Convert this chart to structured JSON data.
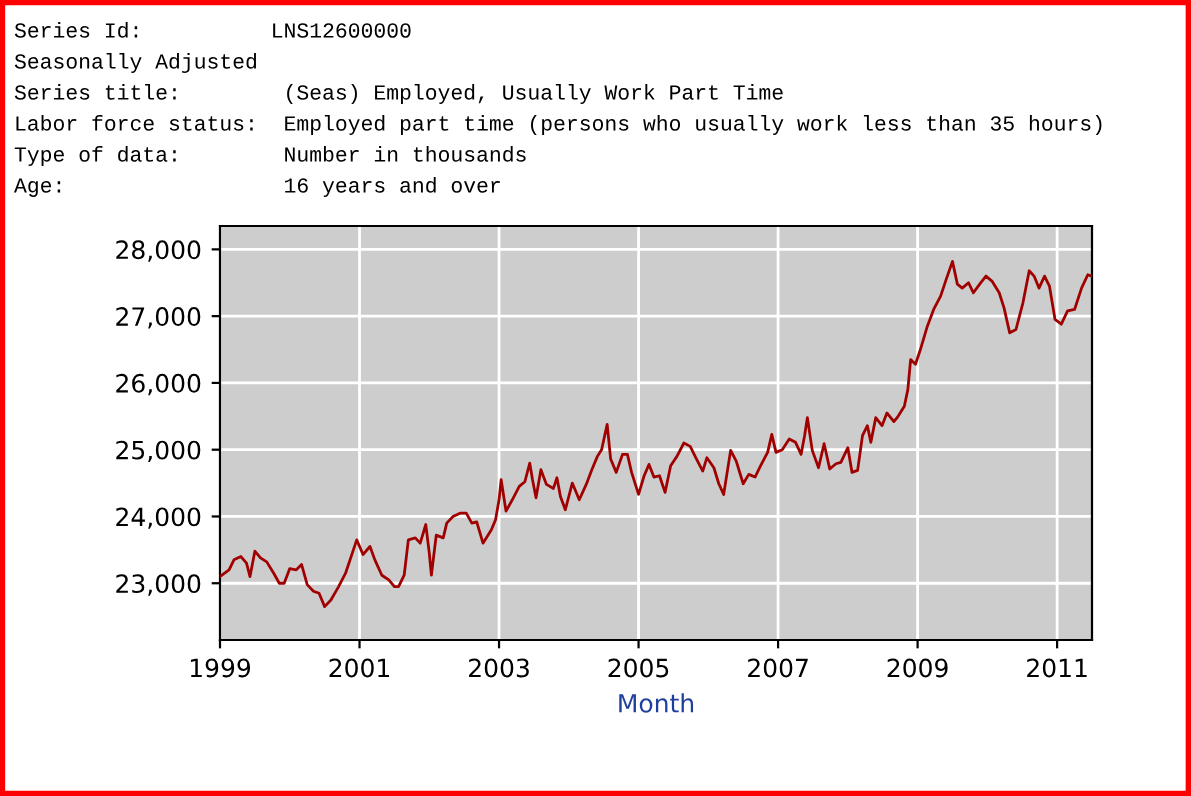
{
  "chart_data": {
    "type": "line",
    "xlabel": "Month",
    "annotations": [
      "Series Id:          LNS12600000",
      "Seasonally Adjusted",
      "Series title:        (Seas) Employed, Usually Work Part Time",
      "Labor force status:  Employed part time (persons who usually work less than 35 hours)",
      "Type of data:        Number in thousands",
      "Age:                 16 years and over"
    ],
    "series": [
      {
        "color": "#a00000",
        "x": [
          1999.0,
          1999.13,
          1999.2,
          1999.3,
          1999.38,
          1999.43,
          1999.5,
          1999.58,
          1999.67,
          1999.77,
          1999.85,
          1999.92,
          2000.0,
          2000.09,
          2000.17,
          2000.25,
          2000.34,
          2000.42,
          2000.5,
          2000.59,
          2000.7,
          2000.8,
          2000.96,
          2001.05,
          2001.15,
          2001.22,
          2001.32,
          2001.42,
          2001.5,
          2001.56,
          2001.64,
          2001.7,
          2001.8,
          2001.87,
          2001.95,
          2002.0,
          2002.03,
          2002.1,
          2002.2,
          2002.25,
          2002.34,
          2002.44,
          2002.53,
          2002.61,
          2002.68,
          2002.77,
          2002.89,
          2002.95,
          2003.0,
          2003.03,
          2003.1,
          2003.19,
          2003.29,
          2003.37,
          2003.44,
          2003.48,
          2003.53,
          2003.6,
          2003.68,
          2003.78,
          2003.83,
          2003.88,
          2003.95,
          2004.05,
          2004.15,
          2004.25,
          2004.33,
          2004.41,
          2004.47,
          2004.55,
          2004.6,
          2004.68,
          2004.77,
          2004.84,
          2004.9,
          2005.0,
          2005.08,
          2005.15,
          2005.22,
          2005.3,
          2005.38,
          2005.46,
          2005.55,
          2005.65,
          2005.74,
          2005.82,
          2005.92,
          2005.98,
          2006.08,
          2006.15,
          2006.22,
          2006.32,
          2006.4,
          2006.5,
          2006.58,
          2006.67,
          2006.75,
          2006.85,
          2006.91,
          2006.97,
          2007.06,
          2007.16,
          2007.25,
          2007.33,
          2007.38,
          2007.42,
          2007.49,
          2007.58,
          2007.66,
          2007.74,
          2007.83,
          2007.9,
          2008.0,
          2008.06,
          2008.14,
          2008.21,
          2008.28,
          2008.33,
          2008.4,
          2008.49,
          2008.56,
          2008.66,
          2008.72,
          2008.81,
          2008.86,
          2008.9,
          2008.97,
          2009.04,
          2009.14,
          2009.23,
          2009.33,
          2009.41,
          2009.5,
          2009.57,
          2009.64,
          2009.73,
          2009.8,
          2009.89,
          2009.98,
          2010.07,
          2010.17,
          2010.24,
          2010.32,
          2010.41,
          2010.51,
          2010.6,
          2010.67,
          2010.74,
          2010.82,
          2010.89,
          2010.97,
          2011.06,
          2011.15,
          2011.25,
          2011.35,
          2011.44,
          2011.49
        ],
        "values": [
          23100,
          23200,
          23350,
          23400,
          23300,
          23100,
          23480,
          23380,
          23320,
          23150,
          23000,
          23000,
          23220,
          23200,
          23280,
          22980,
          22880,
          22850,
          22650,
          22750,
          22950,
          23150,
          23650,
          23430,
          23550,
          23350,
          23120,
          23050,
          22950,
          22950,
          23120,
          23650,
          23680,
          23600,
          23880,
          23450,
          23120,
          23720,
          23680,
          23900,
          24000,
          24050,
          24050,
          23900,
          23920,
          23600,
          23800,
          23950,
          24250,
          24550,
          24080,
          24250,
          24450,
          24520,
          24800,
          24550,
          24280,
          24700,
          24480,
          24420,
          24580,
          24300,
          24100,
          24500,
          24250,
          24480,
          24700,
          24900,
          25000,
          25380,
          24860,
          24660,
          24930,
          24930,
          24660,
          24330,
          24610,
          24780,
          24590,
          24610,
          24360,
          24760,
          24900,
          25100,
          25050,
          24880,
          24680,
          24880,
          24730,
          24490,
          24330,
          24990,
          24830,
          24490,
          24630,
          24590,
          24760,
          24960,
          25230,
          24960,
          25000,
          25160,
          25110,
          24930,
          25210,
          25480,
          24990,
          24730,
          25090,
          24710,
          24790,
          24810,
          25030,
          24660,
          24690,
          25210,
          25360,
          25110,
          25480,
          25360,
          25550,
          25420,
          25500,
          25650,
          25900,
          26350,
          26280,
          26500,
          26850,
          27100,
          27300,
          27550,
          27820,
          27480,
          27420,
          27500,
          27350,
          27480,
          27600,
          27520,
          27350,
          27120,
          26750,
          26800,
          27200,
          27680,
          27600,
          27420,
          27600,
          27450,
          26950,
          26880,
          27080,
          27100,
          27420,
          27620,
          27600
        ]
      }
    ],
    "xlim": [
      1999.0,
      2011.5
    ],
    "xticks": [
      1999,
      2001,
      2003,
      2005,
      2007,
      2009,
      2011
    ],
    "ylim": [
      22150,
      28350
    ],
    "yticks": [
      {
        "value": 23000,
        "label": "23,000"
      },
      {
        "value": 24000,
        "label": "24,000"
      },
      {
        "value": 25000,
        "label": "25,000"
      },
      {
        "value": 26000,
        "label": "26,000"
      },
      {
        "value": 27000,
        "label": "27,000"
      },
      {
        "value": 28000,
        "label": "28,000"
      }
    ],
    "grid": true,
    "legend": false,
    "marker": "none",
    "line_style": "solid"
  }
}
